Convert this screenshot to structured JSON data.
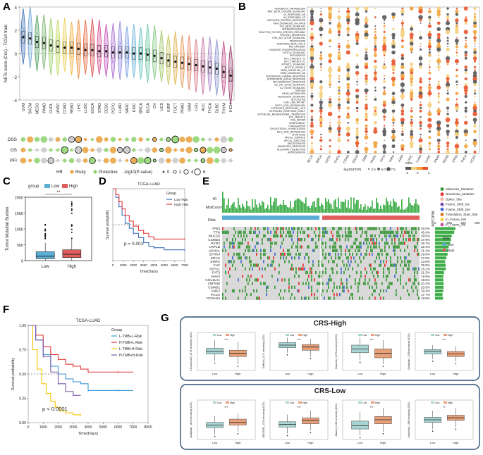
{
  "panels": {
    "A": {
      "letter": "A"
    },
    "B": {
      "letter": "B"
    },
    "C": {
      "letter": "C"
    },
    "D": {
      "letter": "D"
    },
    "E": {
      "letter": "E"
    },
    "F": {
      "letter": "F"
    },
    "G": {
      "letter": "G"
    }
  },
  "colors": {
    "low_box": "#a8d4d4",
    "high_box": "#e8a07a",
    "c_low": "#5aaed6",
    "c_high": "#e05d5d",
    "km_blue": "#3b6fb6",
    "km_red": "#e03a3a",
    "km_yellow": "#f5c400",
    "km_purple": "#7a5aa8",
    "km_lightblue": "#3b9ad9",
    "onco_grey": "#d9d9d9",
    "onco_green": "#3c9a3c",
    "bar_green": "#3fae49",
    "bar_red": "#e05d5d",
    "panel_g_border": "#2d4f73"
  },
  "chart_data": [
    {
      "panel": "A",
      "type": "violin",
      "ylabel": "NETs score (Cox) - TCGA train",
      "ylim": [
        -4,
        4
      ],
      "yticks": [
        -4,
        -2,
        0,
        2,
        4
      ],
      "categories": [
        "UVM",
        "SKCM",
        "MESO",
        "PAAD",
        "CHOL",
        "HNSC",
        "COAD",
        "READ",
        "LIHC",
        "LUSC",
        "ESCA",
        "STAD",
        "CESC",
        "PCPG",
        "LUAD",
        "SARC",
        "KIRC",
        "BRCA",
        "BLCA",
        "OV",
        "UCS",
        "KIRP",
        "TGCT",
        "PRAD",
        "GBM",
        "LGG",
        "ACC",
        "THCA",
        "DLBC",
        "THYM",
        "KICH"
      ],
      "medians": [
        1.4,
        1.3,
        1.0,
        0.9,
        0.7,
        0.6,
        0.5,
        0.5,
        0.4,
        0.3,
        0.3,
        0.2,
        0.2,
        0.1,
        0.1,
        0.1,
        0.0,
        0.0,
        -0.1,
        -0.2,
        -0.4,
        -0.6,
        -0.7,
        -0.8,
        -0.9,
        -1.0,
        -1.1,
        -1.2,
        -1.3,
        -1.6,
        -1.9
      ],
      "colors": [
        "#3b6fb6",
        "#6ca6d9",
        "#4a9f5a",
        "#77b46b",
        "#9ccf6a",
        "#c2d95a",
        "#e6cf52",
        "#f0b03c",
        "#ee8a3b",
        "#e8673c",
        "#d94c4c",
        "#d7468c",
        "#c450b8",
        "#a96bd1",
        "#8f86dc",
        "#7a9ee0",
        "#6db7d8",
        "#66c4c0",
        "#6ac7a0",
        "#82c882",
        "#a3c96a",
        "#c5c35a",
        "#e0b24e",
        "#e89a58",
        "#e6866a",
        "#d97a8a",
        "#c97aa8",
        "#a986c5",
        "#8a94d0",
        "#c24f8a",
        "#9a3a6a"
      ],
      "row_labels": [
        "DSS",
        "OS",
        "PFI"
      ],
      "legend_hr_title": "HR",
      "legend_hr": [
        "Risky",
        "Protective"
      ],
      "legend_p_title": "-log10(P-value)",
      "legend_p": [
        "0",
        "2",
        "4",
        "6"
      ]
    },
    {
      "panel": "B",
      "type": "dotplot",
      "rows": [
        "XENOBIOTIC_METABOLISM",
        "WNT_BETA_CATENIN_SIGNALING",
        "UV_RESPONSE_DN",
        "UV_RESPONSE_UP",
        "UNFOLDED_PROTEIN_RESPONSE",
        "TNFA_SIGNALING_VIA_NFKB",
        "TGF_BETA_SIGNALING",
        "SPERMATOGENESIS",
        "REACTIVE_OXYGEN_SPECIES_PATHWAY",
        "PROTEIN_SECRETION",
        "PI3K_AKT_MTOR_SIGNALING",
        "PEROXISOME",
        "PANCREAS_BETA_CELLS",
        "P53_PATHWAY",
        "OXIDATIVE_PHOSPHORYLATION",
        "NOTCH_SIGNALING",
        "MYOGENESIS",
        "MYC_TARGETS_V2",
        "MYC_TARGETS_V1",
        "MTORC1_SIGNALING",
        "MITOTIC_SPINDLE",
        "KRAS_SIGNALING_UP",
        "KRAS_SIGNALING_DN",
        "INTERFERON_GAMMA_RESPONSE",
        "INTERFERON_ALPHA_RESPONSE",
        "INFLAMMATORY_RESPONSE",
        "IL6_JAK_STAT3_SIGNALING",
        "IL2_STAT5_SIGNALING",
        "HYPOXIA",
        "HEME_METABOLISM",
        "HEDGEHOG_SIGNALING",
        "GLYCOLYSIS",
        "G2M_CHECKPOINT",
        "FATTY_ACID_METABOLISM",
        "ESTROGEN_RESPONSE_LATE",
        "ESTROGEN_RESPONSE_EARLY",
        "EPITHELIAL_MESENCHYMAL_TRANSITION",
        "E2F_TARGETS",
        "DNA_REPAIR",
        "COMPLEMENT",
        "COAGULATION",
        "CHOLESTEROL_HOMEOSTASIS",
        "BILE_ACID_METABOLISM",
        "APOPTOSIS",
        "APICAL_SURFACE",
        "APICAL_JUNCTION",
        "ANGIOGENESIS",
        "ANDROGEN_RESPONSE",
        "ALLOGRAFT_REJECTION",
        "ADIPOGENESIS"
      ],
      "cols": [
        "BLCA",
        "BRCA",
        "CESC",
        "CHOL",
        "COAD",
        "ESCA",
        "GBM",
        "HNSC",
        "KICH",
        "KIRC",
        "KIRP",
        "LIHC",
        "LUAD",
        "LUSC",
        "PAAD",
        "READ",
        "STAD",
        "THCA",
        "UCEC"
      ],
      "legend_size_title": "-log10(FDR)",
      "legend_size": [
        "2.5",
        "5.0",
        "7.5"
      ],
      "legend_color_title": "NES",
      "legend_color": [
        "-2",
        "0",
        "2"
      ]
    },
    {
      "panel": "C",
      "type": "boxplot",
      "legend_title": "group",
      "groups": [
        "Low",
        "High"
      ],
      "ylabel": "Tumor Mutation Burden",
      "ylim": [
        0,
        2000
      ],
      "yticks": [
        0,
        500,
        1000,
        1500,
        2000
      ],
      "significance": "**",
      "stats": [
        {
          "name": "Low",
          "q1": 60,
          "median": 140,
          "q3": 280,
          "whisker_low": 5,
          "whisker_high": 560
        },
        {
          "name": "High",
          "q1": 95,
          "median": 200,
          "q3": 340,
          "whisker_low": 10,
          "whisker_high": 680
        }
      ]
    },
    {
      "panel": "D",
      "type": "line",
      "title": "TCGA-LUAD",
      "xlabel": "Time(Days)",
      "ylabel": "Survival probability",
      "xlim": [
        0,
        7000
      ],
      "ylim": [
        0,
        1
      ],
      "xticks": [
        "0",
        "1000",
        "2000",
        "3000",
        "4000",
        "5000",
        "6000",
        "7000"
      ],
      "legend_title": "Group",
      "legend": [
        "Low-TMB",
        "High-TMB"
      ],
      "pvalue": "p = 0.001",
      "series": [
        {
          "name": "Low-TMB",
          "x": [
            0,
            300,
            600,
            900,
            1200,
            1600,
            2000,
            2500,
            3000,
            3500,
            4000,
            5000,
            7000
          ],
          "y": [
            1,
            0.88,
            0.75,
            0.63,
            0.52,
            0.45,
            0.38,
            0.32,
            0.25,
            0.2,
            0.18,
            0.15,
            0.15
          ]
        },
        {
          "name": "High-TMB",
          "x": [
            0,
            300,
            600,
            900,
            1200,
            1600,
            2000,
            2500,
            3000,
            3500,
            4000,
            5000,
            7000
          ],
          "y": [
            1,
            0.92,
            0.82,
            0.72,
            0.63,
            0.55,
            0.48,
            0.42,
            0.38,
            0.33,
            0.3,
            0.3,
            0.3
          ]
        }
      ]
    },
    {
      "panel": "E",
      "type": "oncoplot",
      "top_label": "MutCount",
      "top_max": "40",
      "left_label": "Risk",
      "right_label": "MutCount",
      "right_ticks": [
        "0",
        "200",
        "400",
        "600"
      ],
      "genes": [
        "TP53",
        "TTN",
        "MUC16",
        "CSMD3",
        "RYR2",
        "LRP1B",
        "USH2A",
        "ZFHX4",
        "KRAS",
        "XIRP2",
        "FLG",
        "SPTA1",
        "FAT3",
        "NAV3",
        "COL11A1",
        "ZNF536",
        "CSMD1",
        "ANK2",
        "PCLO",
        "PCDH15"
      ],
      "percents": [
        "48.0%",
        "45.4%",
        "39.5%",
        "37.9%",
        "35.7%",
        "32.1%",
        "31.3%",
        "29.6%",
        "27.0%",
        "23.8%",
        "25.0%",
        "25.2%",
        "21.3%",
        "19.9%",
        "19.5%",
        "20.2%",
        "20.0%",
        "19.4%",
        "17.7%",
        "18.8%"
      ],
      "legend": [
        "Missense_Mutation",
        "Nonsense_Mutation",
        "Splice_Site",
        "Frame_Shift_Ins",
        "Frame_Shift_Del",
        "Translation_Start_Site",
        "In_Frame_Del",
        "In_Frame_Ins"
      ],
      "legend_colors": [
        "#3c9a3c",
        "#e63a3a",
        "#f0b3a0",
        "#7a4ab0",
        "#4a6fd1",
        "#e07a2a",
        "#f5d03a",
        "#c85aa0"
      ],
      "risk_title": "Risk",
      "risk_levels": [
        "Low",
        "High"
      ]
    },
    {
      "panel": "F",
      "type": "line",
      "title": "TCGA-LUAD",
      "xlabel": "Time(Days)",
      "ylabel": "Survival probability",
      "xlim": [
        0,
        8000
      ],
      "ylim": [
        0,
        1
      ],
      "xticks": [
        "0",
        "1000",
        "2000",
        "3000",
        "4000",
        "5000",
        "6000",
        "7000",
        "8000"
      ],
      "yticks": [
        "0.00",
        "0.25",
        "0.50",
        "0.75",
        "1.00"
      ],
      "legend_title": "Group",
      "legend": [
        "L-TMB+L-Risk",
        "H-TMB+L-Risk",
        "L-TMB+H-Risk",
        "H-TMB+H-Risk"
      ],
      "pvalue": "p < 0.0001",
      "series": [
        {
          "name": "L-TMB+L-Risk",
          "x": [
            0,
            500,
            1000,
            1500,
            2000,
            2500,
            3000,
            3500,
            4000,
            5000,
            6000,
            7000
          ],
          "y": [
            1,
            0.85,
            0.7,
            0.58,
            0.5,
            0.45,
            0.42,
            0.4,
            0.33,
            0.33,
            0.33,
            0.33
          ]
        },
        {
          "name": "H-TMB+L-Risk",
          "x": [
            0,
            500,
            1000,
            1500,
            2000,
            2500,
            3000,
            3500,
            4000,
            5000,
            6000,
            7000
          ],
          "y": [
            1,
            0.9,
            0.78,
            0.7,
            0.65,
            0.6,
            0.58,
            0.55,
            0.52,
            0.52,
            0.52,
            0.52
          ]
        },
        {
          "name": "L-TMB+H-Risk",
          "x": [
            0,
            300,
            600,
            900,
            1200,
            1500,
            1800,
            2100,
            2500,
            3000,
            3500
          ],
          "y": [
            1,
            0.75,
            0.55,
            0.4,
            0.3,
            0.22,
            0.16,
            0.12,
            0.1,
            0.08,
            0.08
          ]
        },
        {
          "name": "H-TMB+H-Risk",
          "x": [
            0,
            500,
            1000,
            1500,
            2000,
            2500,
            3000,
            3500
          ],
          "y": [
            1,
            0.85,
            0.68,
            0.52,
            0.4,
            0.32,
            0.28,
            0.28
          ]
        }
      ]
    },
    {
      "panel": "G",
      "type": "boxplot",
      "groups": [
        "Low",
        "High"
      ],
      "sections": [
        {
          "title": "CRS-High",
          "plots": [
            {
              "ylabel": "5-Fluorouracil_1073 sensitivity (IC50)",
              "ylim": [
                2,
                8
              ],
              "significance": "***",
              "low": {
                "q1": 4.6,
                "median": 5.0,
                "q3": 5.5,
                "whisker_low": 3.5,
                "whisker_high": 6.8
              },
              "high": {
                "q1": 4.2,
                "median": 4.7,
                "q3": 5.2,
                "whisker_low": 3.0,
                "whisker_high": 6.5
              }
            },
            {
              "ylabel": "Gefitinib_1010 sensitivity (IC50)",
              "ylim": [
                2,
                8
              ],
              "significance": "***",
              "low": {
                "q1": 5.6,
                "median": 6.0,
                "q3": 6.4,
                "whisker_low": 4.8,
                "whisker_high": 7.2
              },
              "high": {
                "q1": 5.2,
                "median": 5.7,
                "q3": 6.1,
                "whisker_low": 4.2,
                "whisker_high": 7.0
              }
            },
            {
              "ylabel": "Dasatinib_1079 sensitivity (IC50)",
              "ylim": [
                2,
                8
              ],
              "significance": "***",
              "low": {
                "q1": 4.8,
                "median": 5.4,
                "q3": 6.0,
                "whisker_low": 3.6,
                "whisker_high": 7.2
              },
              "high": {
                "q1": 4.0,
                "median": 4.7,
                "q3": 5.4,
                "whisker_low": 3.0,
                "whisker_high": 6.8
              }
            },
            {
              "ylabel": "Oxaliplatin_1089 sensitivity (IC50)",
              "ylim": [
                2,
                8
              ],
              "significance": "***",
              "low": {
                "q1": 4.6,
                "median": 5.0,
                "q3": 5.3,
                "whisker_low": 3.8,
                "whisker_high": 6.0
              },
              "high": {
                "q1": 4.2,
                "median": 4.6,
                "q3": 5.0,
                "whisker_low": 3.4,
                "whisker_high": 5.8
              }
            }
          ]
        },
        {
          "title": "CRS-Low",
          "plots": [
            {
              "ylabel": "Oxaliplatin_1806 sensitivity (IC50)",
              "ylim": [
                2,
                8
              ],
              "significance": "***",
              "low": {
                "q1": 3.8,
                "median": 4.2,
                "q3": 4.6,
                "whisker_low": 2.8,
                "whisker_high": 5.6
              },
              "high": {
                "q1": 4.2,
                "median": 4.6,
                "q3": 5.1,
                "whisker_low": 3.2,
                "whisker_high": 6.0
              }
            },
            {
              "ylabel": "SB216763_1025 sensitivity (IC50)",
              "ylim": [
                2,
                8
              ],
              "significance": "***",
              "low": {
                "q1": 3.9,
                "median": 4.3,
                "q3": 4.7,
                "whisker_low": 2.9,
                "whisker_high": 5.8
              },
              "high": {
                "q1": 4.4,
                "median": 4.9,
                "q3": 5.3,
                "whisker_low": 3.4,
                "whisker_high": 6.4
              }
            },
            {
              "ylabel": "Afatinib_1032 sensitivity (IC50)",
              "ylim": [
                2,
                8
              ],
              "significance": "***",
              "low": {
                "q1": 3.6,
                "median": 4.1,
                "q3": 4.8,
                "whisker_low": 2.6,
                "whisker_high": 6.2
              },
              "high": {
                "q1": 4.4,
                "median": 5.0,
                "q3": 5.5,
                "whisker_low": 3.2,
                "whisker_high": 6.8
              }
            },
            {
              "ylabel": "Savolitinib_1936 sensitivity (IC50)",
              "ylim": [
                2,
                8
              ],
              "significance": "**",
              "low": {
                "q1": 4.6,
                "median": 5.0,
                "q3": 5.4,
                "whisker_low": 3.6,
                "whisker_high": 6.4
              },
              "high": {
                "q1": 4.9,
                "median": 5.3,
                "q3": 5.7,
                "whisker_low": 3.9,
                "whisker_high": 6.8
              }
            }
          ]
        }
      ]
    }
  ]
}
